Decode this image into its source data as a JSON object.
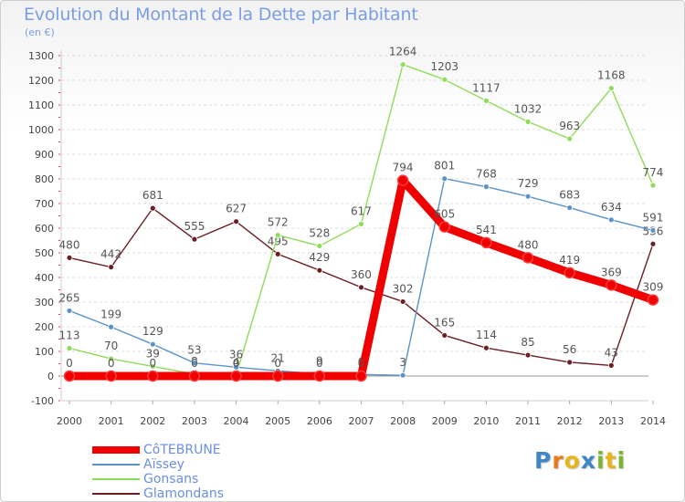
{
  "header": {
    "title": "Evolution du Montant de la Dette par Habitant",
    "unit": "(en €)"
  },
  "logo": {
    "letters": [
      "P",
      "r",
      "o",
      "x",
      "i",
      "t",
      "i"
    ],
    "colors": [
      "#3e86c9",
      "#e87a1a",
      "#e8b51a",
      "#3e86c9",
      "#7ab532",
      "#e8b51a",
      "#7ab532"
    ]
  },
  "chart_data": {
    "type": "line",
    "title": "Evolution du Montant de la Dette par Habitant",
    "subtitle": "(en €)",
    "xlabel": "",
    "ylabel": "",
    "x": [
      2000,
      2001,
      2002,
      2003,
      2004,
      2005,
      2006,
      2007,
      2008,
      2009,
      2010,
      2011,
      2012,
      2013,
      2014
    ],
    "ylim": [
      -100,
      1300
    ],
    "yticks": [
      -100,
      0,
      100,
      200,
      300,
      400,
      500,
      600,
      700,
      800,
      900,
      1000,
      1100,
      1200,
      1300
    ],
    "grid": "horizontal dashed",
    "legend_position": "bottom-left",
    "series": [
      {
        "name": "Glamondans",
        "color": "#6b1f24",
        "values": [
          480,
          442,
          681,
          555,
          627,
          495,
          429,
          360,
          302,
          165,
          114,
          85,
          56,
          43,
          536
        ]
      },
      {
        "name": "Gonsans",
        "color": "#8fdc5a",
        "values": [
          113,
          70,
          39,
          8,
          4,
          572,
          528,
          617,
          1264,
          1203,
          1117,
          1032,
          963,
          1168,
          774
        ]
      },
      {
        "name": "Aïssey",
        "color": "#5b93c8",
        "values": [
          265,
          199,
          129,
          53,
          36,
          21,
          9,
          6,
          3,
          801,
          768,
          729,
          683,
          634,
          591
        ]
      },
      {
        "name": "CôTEBRUNE",
        "color": "#f00000",
        "values": [
          0,
          0,
          0,
          0,
          0,
          0,
          0,
          0,
          794,
          605,
          541,
          480,
          419,
          369,
          309
        ]
      }
    ]
  }
}
